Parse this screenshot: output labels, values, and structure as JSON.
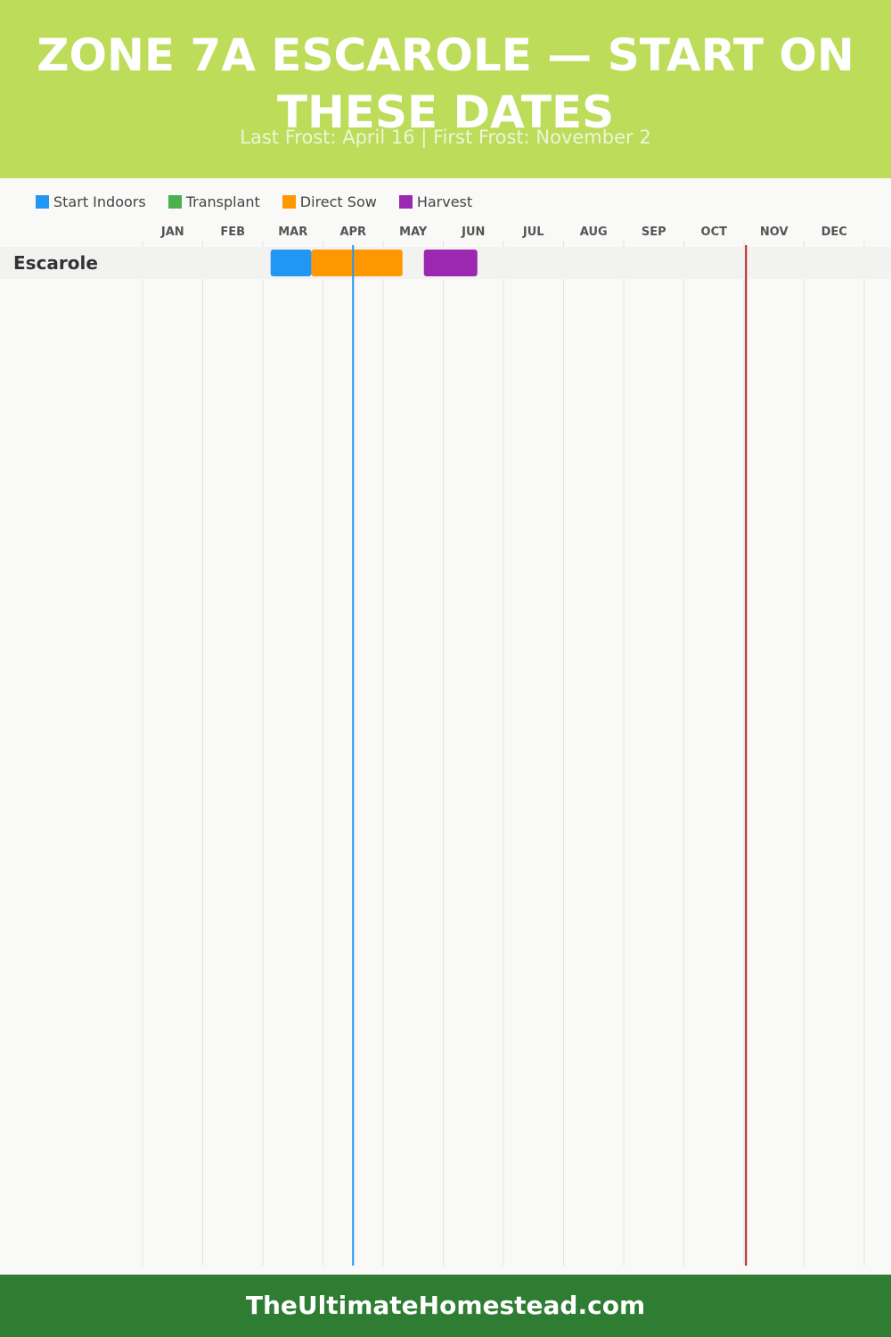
{
  "header": {
    "title": "ZONE 7A ESCAROLE — START ON THESE DATES",
    "subtitle": "Last Frost: April 16 | First Frost: November 2",
    "background_color": "#bcdc5a"
  },
  "legend": [
    {
      "label": "Start Indoors",
      "color": "#2196f3"
    },
    {
      "label": "Transplant",
      "color": "#4caf50"
    },
    {
      "label": "Direct Sow",
      "color": "#ff9800"
    },
    {
      "label": "Harvest",
      "color": "#9c27b0"
    }
  ],
  "chart_data": {
    "type": "gantt",
    "months": [
      "JAN",
      "FEB",
      "MAR",
      "APR",
      "MAY",
      "JUN",
      "JUL",
      "AUG",
      "SEP",
      "OCT",
      "NOV",
      "DEC"
    ],
    "rows": [
      {
        "name": "Escarole",
        "bars": [
          {
            "activity": "Start Indoors",
            "start": "Mar 5",
            "end": "Mar 26",
            "color": "#2196f3"
          },
          {
            "activity": "Direct Sow",
            "start": "Mar 26",
            "end": "May 11",
            "color": "#ff9800"
          },
          {
            "activity": "Harvest",
            "start": "May 22",
            "end": "Jun 18",
            "color": "#9c27b0"
          }
        ]
      }
    ],
    "markers": [
      {
        "event": "Last Frost",
        "date": "Apr 16",
        "color": "#2196f3"
      },
      {
        "event": "First Frost",
        "date": "Nov 2",
        "color": "#b71c1c"
      }
    ],
    "grid": true,
    "legend_position": "top-left"
  },
  "footer": {
    "text": "TheUltimateHomestead.com",
    "background_color": "#2e7d32"
  }
}
